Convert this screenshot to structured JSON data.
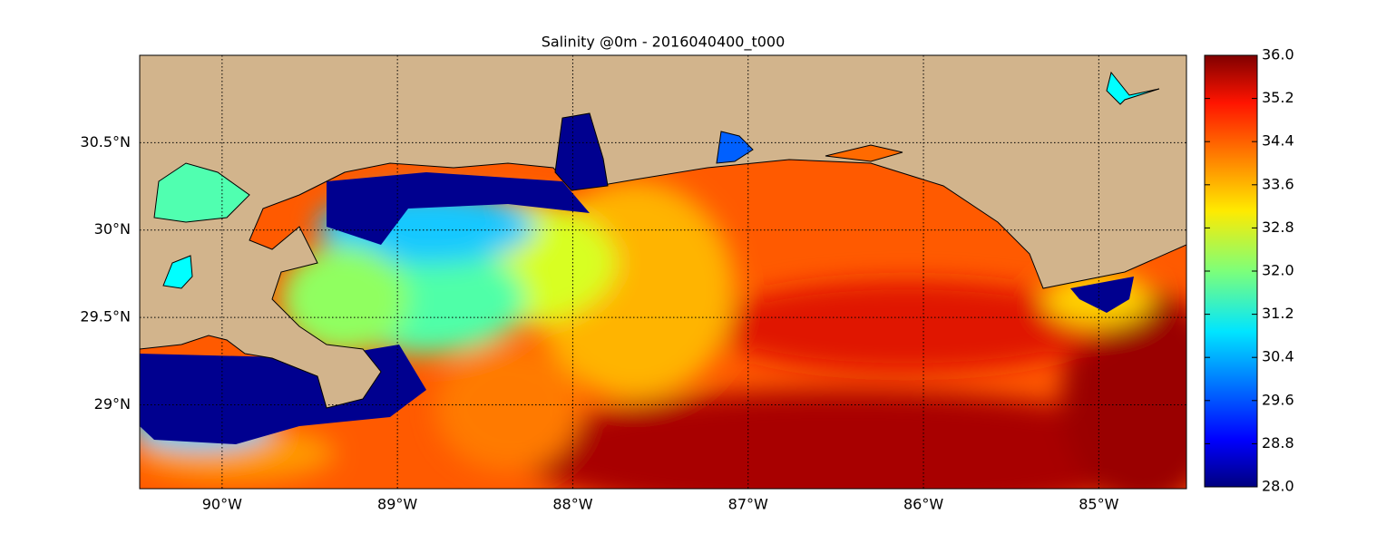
{
  "chart_data": {
    "type": "map",
    "title": "Salinity @0m - 2016040400_t000",
    "xlim": [
      -90.47,
      -84.5
    ],
    "ylim": [
      28.52,
      31.0
    ],
    "xticks": [
      {
        "value": -90,
        "label": "90°W"
      },
      {
        "value": -89,
        "label": "89°W"
      },
      {
        "value": -88,
        "label": "88°W"
      },
      {
        "value": -87,
        "label": "87°W"
      },
      {
        "value": -86,
        "label": "86°W"
      },
      {
        "value": -85,
        "label": "85°W"
      }
    ],
    "yticks": [
      {
        "value": 29,
        "label": "29°N"
      },
      {
        "value": 29.5,
        "label": "29.5°N"
      },
      {
        "value": 30,
        "label": "30°N"
      },
      {
        "value": 30.5,
        "label": "30.5°N"
      }
    ],
    "grid": true,
    "colorbar": {
      "lim": [
        28,
        36
      ],
      "ticks": [
        {
          "value": 28,
          "label": "28.0"
        },
        {
          "value": 28.8,
          "label": "28.8"
        },
        {
          "value": 29.6,
          "label": "29.6"
        },
        {
          "value": 30.4,
          "label": "30.4"
        },
        {
          "value": 31.2,
          "label": "31.2"
        },
        {
          "value": 32,
          "label": "32.0"
        },
        {
          "value": 32.8,
          "label": "32.8"
        },
        {
          "value": 33.6,
          "label": "33.6"
        },
        {
          "value": 34.4,
          "label": "34.4"
        },
        {
          "value": 35.2,
          "label": "35.2"
        },
        {
          "value": 36,
          "label": "36.0"
        }
      ]
    }
  }
}
